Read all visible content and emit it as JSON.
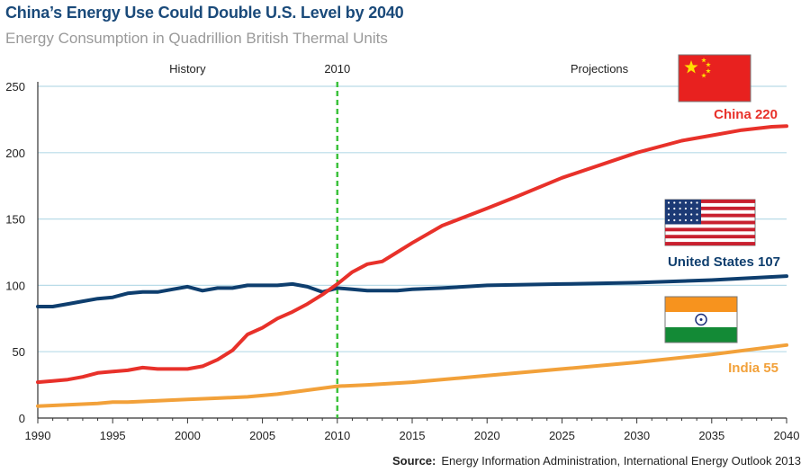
{
  "title": "China’s Energy Use Could Double U.S. Level by 2040",
  "subtitle": "Energy Consumption in Quadrillion British Thermal Units",
  "source_label": "Source:",
  "source_text": "Energy Information Administration, International Energy Outlook 2013",
  "colors": {
    "china": "#e8312a",
    "us": "#0e3e6e",
    "india": "#f2a13a",
    "grid": "#b9dbe8",
    "divider": "#3cc23c",
    "axis": "#333333"
  },
  "chart_data": {
    "type": "line",
    "title": "China’s Energy Use Could Double U.S. Level by 2040",
    "subtitle": "Energy Consumption in Quadrillion British Thermal Units",
    "xlabel": "",
    "ylabel": "",
    "xlim": [
      1990,
      2040
    ],
    "ylim": [
      0,
      250
    ],
    "xticks": [
      1990,
      1995,
      2000,
      2005,
      2010,
      2015,
      2020,
      2025,
      2030,
      2035,
      2040
    ],
    "yticks": [
      0,
      50,
      100,
      150,
      200,
      250
    ],
    "grid": true,
    "divider": {
      "x": 2010,
      "label": "2010"
    },
    "region_labels": [
      {
        "text": "History",
        "x": 2000
      },
      {
        "text": "Projections",
        "x": 2027.5
      }
    ],
    "series": [
      {
        "key": "us",
        "name": "United States",
        "end_label": "United States 107",
        "color": "#0e3e6e",
        "flag": "us",
        "points": [
          [
            1990,
            84
          ],
          [
            1991,
            84
          ],
          [
            1992,
            86
          ],
          [
            1993,
            88
          ],
          [
            1994,
            90
          ],
          [
            1995,
            91
          ],
          [
            1996,
            94
          ],
          [
            1997,
            95
          ],
          [
            1998,
            95
          ],
          [
            1999,
            97
          ],
          [
            2000,
            99
          ],
          [
            2001,
            96
          ],
          [
            2002,
            98
          ],
          [
            2003,
            98
          ],
          [
            2004,
            100
          ],
          [
            2005,
            100
          ],
          [
            2006,
            100
          ],
          [
            2007,
            101
          ],
          [
            2008,
            99
          ],
          [
            2009,
            95
          ],
          [
            2010,
            98
          ],
          [
            2011,
            97
          ],
          [
            2012,
            96
          ],
          [
            2013,
            96
          ],
          [
            2014,
            96
          ],
          [
            2015,
            97
          ],
          [
            2017,
            98
          ],
          [
            2020,
            100
          ],
          [
            2025,
            101
          ],
          [
            2030,
            102
          ],
          [
            2035,
            104
          ],
          [
            2040,
            107
          ]
        ]
      },
      {
        "key": "china",
        "name": "China",
        "end_label": "China 220",
        "color": "#e8312a",
        "flag": "china",
        "points": [
          [
            1990,
            27
          ],
          [
            1991,
            28
          ],
          [
            1992,
            29
          ],
          [
            1993,
            31
          ],
          [
            1994,
            34
          ],
          [
            1995,
            35
          ],
          [
            1996,
            36
          ],
          [
            1997,
            38
          ],
          [
            1998,
            37
          ],
          [
            1999,
            37
          ],
          [
            2000,
            37
          ],
          [
            2001,
            39
          ],
          [
            2002,
            44
          ],
          [
            2003,
            51
          ],
          [
            2004,
            63
          ],
          [
            2005,
            68
          ],
          [
            2006,
            75
          ],
          [
            2007,
            80
          ],
          [
            2008,
            86
          ],
          [
            2009,
            93
          ],
          [
            2010,
            101
          ],
          [
            2011,
            110
          ],
          [
            2012,
            116
          ],
          [
            2013,
            118
          ],
          [
            2014,
            125
          ],
          [
            2015,
            132
          ],
          [
            2017,
            145
          ],
          [
            2020,
            158
          ],
          [
            2022,
            167
          ],
          [
            2025,
            181
          ],
          [
            2030,
            200
          ],
          [
            2033,
            209
          ],
          [
            2035,
            213
          ],
          [
            2037,
            217
          ],
          [
            2039,
            219.5
          ],
          [
            2040,
            220
          ]
        ]
      },
      {
        "key": "india",
        "name": "India",
        "end_label": "India 55",
        "color": "#f2a13a",
        "flag": "india",
        "points": [
          [
            1990,
            9
          ],
          [
            1992,
            10
          ],
          [
            1994,
            11
          ],
          [
            1995,
            12
          ],
          [
            1996,
            12
          ],
          [
            1998,
            13
          ],
          [
            2000,
            14
          ],
          [
            2002,
            15
          ],
          [
            2004,
            16
          ],
          [
            2006,
            18
          ],
          [
            2008,
            21
          ],
          [
            2010,
            24
          ],
          [
            2012,
            25
          ],
          [
            2015,
            27
          ],
          [
            2020,
            32
          ],
          [
            2025,
            37
          ],
          [
            2030,
            42
          ],
          [
            2035,
            48
          ],
          [
            2040,
            55
          ]
        ]
      }
    ]
  }
}
